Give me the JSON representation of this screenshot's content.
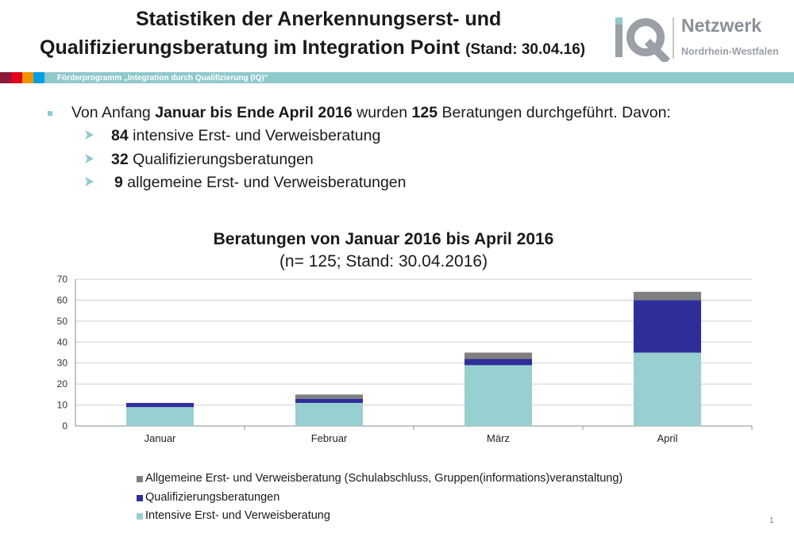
{
  "header": {
    "title_line1": "Statistiken der Anerkennungserst- und",
    "title_line2": "Qualifizierungsberatung im Integration Point",
    "title_stand": "(Stand: 30.04.16)",
    "logo_name": "Netzwerk",
    "logo_region": "Nordrhein-Westfalen",
    "programme": "Förderprogramm „Integration durch Qualifizierung (IQ)“"
  },
  "summary": {
    "intro_a": "Von Anfang ",
    "intro_b": "Januar bis Ende April 2016",
    "intro_c": " wurden ",
    "intro_d": "125",
    "intro_e": " Beratungen durchgeführt. Davon:",
    "items": [
      {
        "num": "84",
        "text": " intensive Erst- und Verweisberatung"
      },
      {
        "num": "32",
        "text": " Qualifizierungsberatungen"
      },
      {
        "num": "9",
        "text": " allgemeine Erst- und Verweisberatungen"
      }
    ]
  },
  "colors": {
    "teal": "#98d0d1",
    "navy": "#2e2e9a",
    "gray": "#7f7f7f",
    "strip": [
      "#8b1a3a",
      "#e2001a",
      "#f29400",
      "#009fe3"
    ]
  },
  "chart_data": {
    "type": "bar",
    "stacked": true,
    "title": "Beratungen von Januar 2016 bis April 2016",
    "subtitle": "(n= 125; Stand: 30.04.2016)",
    "categories": [
      "Januar",
      "Februar",
      "März",
      "April"
    ],
    "ylim": [
      0,
      70
    ],
    "yticks": [
      0,
      10,
      20,
      30,
      40,
      50,
      60,
      70
    ],
    "grid": true,
    "legend_position": "bottom",
    "series": [
      {
        "name": "Intensive Erst- und Verweisberatung",
        "values": [
          9,
          11,
          29,
          35
        ],
        "color": "#98d0d1"
      },
      {
        "name": "Qualifizierungsberatungen",
        "values": [
          2,
          2,
          3,
          25
        ],
        "color": "#2e2e9a"
      },
      {
        "name": "Allgemeine Erst- und Verweisberatung (Schulabschluss, Gruppen(informations)veranstaltung)",
        "values": [
          0,
          2,
          3,
          4
        ],
        "color": "#7f7f7f"
      }
    ]
  },
  "page_number": "1"
}
